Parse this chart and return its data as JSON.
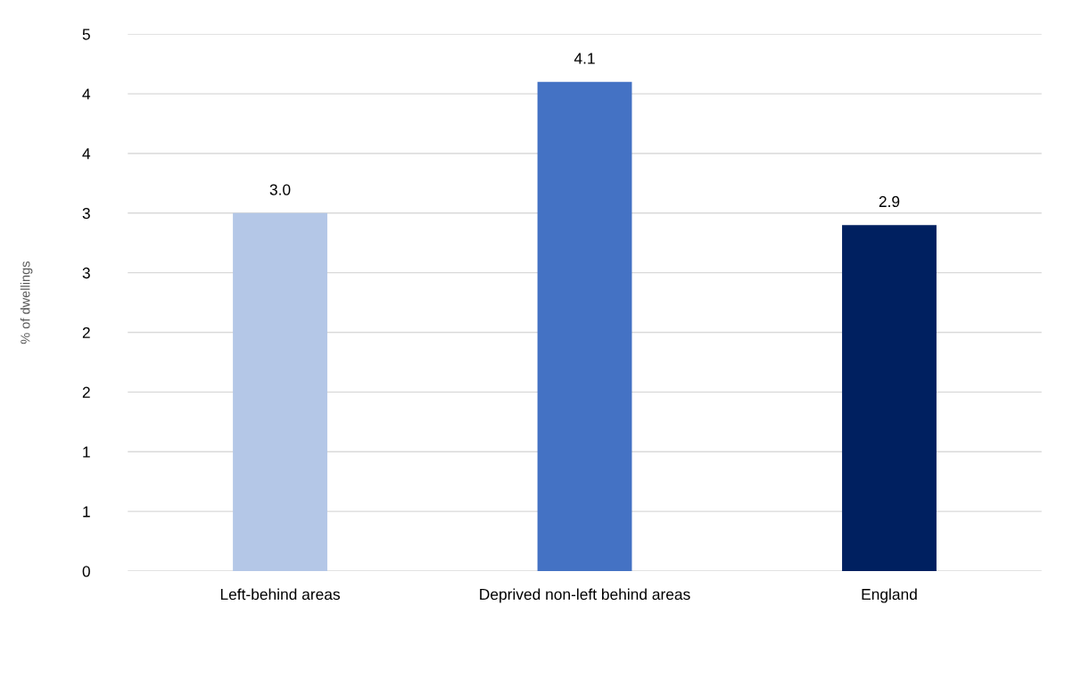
{
  "chart_data": {
    "type": "bar",
    "ylabel": "% of dwellings",
    "categories": [
      "Left-behind areas",
      "Deprived non-left behind areas",
      "England"
    ],
    "values": [
      3.0,
      4.1,
      2.9
    ],
    "colors": [
      "#b4c7e7",
      "#4472c4",
      "#002060"
    ],
    "value_labels": [
      "3.0",
      "4.1",
      "2.9"
    ],
    "ylim": [
      0,
      4.5
    ],
    "yticks": [
      0,
      {
        "value": 0.5,
        "label": "1"
      },
      1,
      {
        "value": 1.5,
        "label": "2"
      },
      2,
      {
        "value": 2.5,
        "label": "3"
      },
      3,
      {
        "value": 3.5,
        "label": "4"
      },
      4,
      {
        "value": 4.5,
        "label": "5"
      }
    ],
    "grid": "y",
    "legend": false
  }
}
